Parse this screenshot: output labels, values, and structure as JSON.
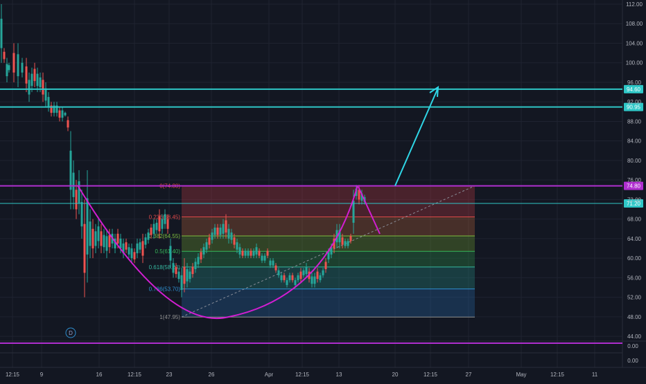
{
  "chart_data": {
    "type": "candlestick",
    "price_axis": {
      "ticks": [
        "112.00",
        "108.00",
        "104.00",
        "100.00",
        "96.00",
        "92.00",
        "88.00",
        "84.00",
        "80.00",
        "76.00",
        "72.00",
        "68.00",
        "64.00",
        "60.00",
        "56.00",
        "52.00",
        "48.00",
        "44.00"
      ],
      "range": [
        44,
        112
      ]
    },
    "secondary_axis": {
      "ticks": [
        "0.00",
        "0.00"
      ]
    },
    "time_axis": {
      "ticks": [
        "12:15",
        "9",
        "16",
        "12:15",
        "23",
        "26",
        "Apr",
        "12:15",
        "13",
        "20",
        "12:15",
        "27",
        "May",
        "12:15",
        "11"
      ]
    },
    "horizontal_levels": [
      {
        "price": 94.6,
        "label": "94.60",
        "color": "#2fc7c7"
      },
      {
        "price": 90.95,
        "label": "90.95",
        "color": "#2fc7c7"
      },
      {
        "price": 74.8,
        "label": "74.80",
        "color": "#b02fd0"
      },
      {
        "price": 71.2,
        "label": "71.20",
        "color": "#2fc7c7"
      },
      {
        "price": 42.6,
        "label": "",
        "color": "#b02fd0"
      }
    ],
    "fib_levels": [
      {
        "ratio": 0,
        "price": 74.8,
        "label": "0(74.80)",
        "color": "#e24a4a"
      },
      {
        "ratio": 0.236,
        "price": 68.45,
        "label": "0.236(68.45)",
        "color": "#e24a4a"
      },
      {
        "ratio": 0.382,
        "price": 64.55,
        "label": "0.382(64.55)",
        "color": "#7fbf3f"
      },
      {
        "ratio": 0.5,
        "price": 61.4,
        "label": "0.5(61.40)",
        "color": "#35b85a"
      },
      {
        "ratio": 0.618,
        "price": 58.2,
        "label": "0.618(58.20)",
        "color": "#35b8a0"
      },
      {
        "ratio": 0.786,
        "price": 53.7,
        "label": "0.786(53.70)",
        "color": "#2f8fd0"
      },
      {
        "ratio": 1,
        "price": 47.95,
        "label": "1(47.95)",
        "color": "#909090"
      }
    ],
    "annotations": {
      "marker": "D"
    },
    "colors": {
      "up": "#26a69a",
      "down": "#ef5350",
      "background": "#131722",
      "grid": "#1f2330",
      "cup": "#d21ed2",
      "target_arrow": "#2fd6e6"
    }
  }
}
